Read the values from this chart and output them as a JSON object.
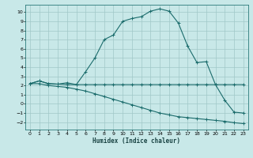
{
  "title": "",
  "xlabel": "Humidex (Indice chaleur)",
  "bg_color": "#c8e8e8",
  "grid_color": "#a0c8c8",
  "line_color": "#1a6b6b",
  "xlim": [
    -0.5,
    23.5
  ],
  "ylim": [
    -2.8,
    10.8
  ],
  "yticks": [
    -2,
    -1,
    0,
    1,
    2,
    3,
    4,
    5,
    6,
    7,
    8,
    9,
    10
  ],
  "xticks": [
    0,
    1,
    2,
    3,
    4,
    5,
    6,
    7,
    8,
    9,
    10,
    11,
    12,
    13,
    14,
    15,
    16,
    17,
    18,
    19,
    20,
    21,
    22,
    23
  ],
  "line1_x": [
    0,
    1,
    2,
    3,
    4,
    5,
    6,
    7,
    8,
    9,
    10,
    11,
    12,
    13,
    14,
    15,
    16,
    17,
    18,
    19,
    20,
    21,
    22,
    23
  ],
  "line1_y": [
    2.2,
    2.5,
    2.2,
    2.15,
    2.1,
    2.1,
    2.1,
    2.1,
    2.1,
    2.1,
    2.1,
    2.1,
    2.1,
    2.1,
    2.1,
    2.1,
    2.1,
    2.1,
    2.1,
    2.1,
    2.1,
    2.1,
    2.1,
    2.1
  ],
  "line2_x": [
    0,
    1,
    2,
    3,
    4,
    5,
    6,
    7,
    8,
    9,
    10,
    11,
    12,
    13,
    14,
    15,
    16,
    17,
    18,
    19,
    20,
    21,
    22,
    23
  ],
  "line2_y": [
    2.2,
    2.2,
    2.0,
    1.9,
    1.8,
    1.6,
    1.4,
    1.1,
    0.8,
    0.5,
    0.2,
    -0.1,
    -0.4,
    -0.7,
    -1.0,
    -1.2,
    -1.4,
    -1.5,
    -1.6,
    -1.7,
    -1.8,
    -1.9,
    -2.05,
    -2.15
  ],
  "line3_x": [
    0,
    1,
    2,
    3,
    4,
    5,
    6,
    7,
    8,
    9,
    10,
    11,
    12,
    13,
    14,
    15,
    16,
    17,
    18,
    19,
    20,
    21,
    22,
    23
  ],
  "line3_y": [
    2.2,
    2.5,
    2.2,
    2.15,
    2.3,
    2.1,
    3.5,
    5.0,
    7.0,
    7.5,
    9.0,
    9.3,
    9.5,
    10.1,
    10.35,
    10.1,
    8.8,
    6.3,
    4.5,
    4.6,
    2.1,
    0.4,
    -0.9,
    -1.0
  ]
}
